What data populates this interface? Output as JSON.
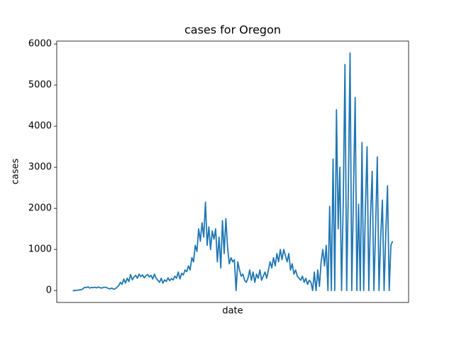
{
  "chart_data": {
    "type": "line",
    "title": "cases for Oregon",
    "xlabel": "date",
    "ylabel": "cases",
    "color": "#1f77b4",
    "values": [
      0,
      0,
      5,
      10,
      15,
      20,
      40,
      80,
      70,
      90,
      60,
      75,
      70,
      80,
      65,
      85,
      70,
      60,
      75,
      80,
      70,
      50,
      40,
      60,
      30,
      45,
      80,
      120,
      200,
      150,
      280,
      180,
      300,
      220,
      390,
      260,
      330,
      370,
      300,
      400,
      340,
      380,
      310,
      360,
      390,
      330,
      370,
      280,
      400,
      300,
      250,
      200,
      300,
      180,
      260,
      220,
      310,
      240,
      290,
      260,
      350,
      300,
      450,
      280,
      420,
      380,
      500,
      460,
      600,
      500,
      800,
      700,
      1100,
      950,
      1500,
      1200,
      1650,
      1300,
      2150,
      1100,
      1550,
      1000,
      1450,
      1250,
      1500,
      700,
      1300,
      550,
      1700,
      900,
      1750,
      1050,
      650,
      800,
      700,
      750,
      0,
      700,
      500,
      350,
      400,
      250,
      200,
      300,
      500,
      250,
      450,
      200,
      400,
      300,
      500,
      250,
      350,
      450,
      300,
      500,
      700,
      550,
      800,
      600,
      900,
      700,
      1000,
      750,
      1000,
      850,
      700,
      900,
      500,
      650,
      400,
      500,
      350,
      300,
      250,
      350,
      200,
      300,
      150,
      250,
      200,
      0,
      450,
      0,
      500,
      100,
      700,
      1000,
      600,
      1100,
      0,
      2050,
      0,
      3200,
      0,
      4400,
      1500,
      3000,
      0,
      2200,
      5500,
      0,
      2500,
      5780,
      0,
      2400,
      4700,
      0,
      2100,
      0,
      3600,
      0,
      2000,
      3500,
      0,
      1800,
      2900,
      0,
      1500,
      3250,
      0,
      1300,
      2200,
      0,
      1400,
      2550,
      0,
      1100,
      1200
    ],
    "ylim": [
      -290,
      6070
    ],
    "yticks": [
      0,
      1000,
      2000,
      3000,
      4000,
      5000,
      6000
    ]
  }
}
